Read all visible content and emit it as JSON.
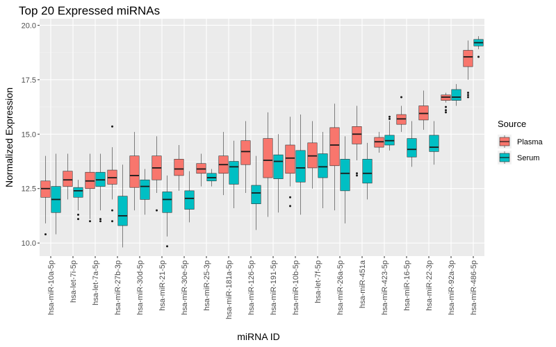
{
  "chart_data": {
    "type": "boxplot",
    "title": "Top 20 Expressed miRNAs",
    "xlabel": "miRNA ID",
    "ylabel": "Normalized Expression",
    "ylim": [
      9.4,
      20.3
    ],
    "yticks": [
      "10.0",
      "12.5",
      "15.0",
      "17.5",
      "20.0"
    ],
    "grid": true,
    "legend": {
      "title": "Source",
      "placement": "right",
      "entries": [
        {
          "name": "Plasma",
          "color": "#F8766D"
        },
        {
          "name": "Serum",
          "color": "#00BFC4"
        }
      ]
    },
    "categories": [
      "hsa-miR-10a-5p",
      "hsa-let-7i-5p",
      "hsa-let-7a-5p",
      "hsa-miR-27b-3p",
      "hsa-miR-30d-5p",
      "hsa-miR-21-5p",
      "hsa-miR-30e-5p",
      "hsa-miR-25-3p",
      "hsa-miR-181a-5p",
      "hsa-miR-126-5p",
      "hsa-miR-191-5p",
      "hsa-miR-10b-5p",
      "hsa-let-7f-5p",
      "hsa-miR-26a-5p",
      "hsa-miR-451a",
      "hsa-miR-423-5p",
      "hsa-miR-16-5p",
      "hsa-miR-22-3p",
      "hsa-miR-92a-3p",
      "hsa-miR-486-5p"
    ],
    "series": [
      {
        "name": "Plasma",
        "color": "#F8766D",
        "boxes": [
          {
            "min": 10.9,
            "q1": 12.1,
            "median": 12.5,
            "q3": 12.85,
            "max": 14.0,
            "outliers": [
              10.4
            ]
          },
          {
            "min": 12.0,
            "q1": 12.6,
            "median": 12.9,
            "q3": 13.3,
            "max": 14.1,
            "outliers": []
          },
          {
            "min": 11.1,
            "q1": 12.5,
            "median": 12.85,
            "q3": 13.25,
            "max": 14.1,
            "outliers": [
              11.0
            ]
          },
          {
            "min": 12.0,
            "q1": 12.7,
            "median": 13.0,
            "q3": 13.35,
            "max": 14.4,
            "outliers": [
              15.35,
              11.5,
              11.0
            ]
          },
          {
            "min": 11.5,
            "q1": 12.55,
            "median": 13.1,
            "q3": 14.0,
            "max": 15.1,
            "outliers": []
          },
          {
            "min": 12.3,
            "q1": 12.9,
            "median": 13.45,
            "q3": 14.0,
            "max": 14.9,
            "outliers": [
              11.5
            ]
          },
          {
            "min": 12.4,
            "q1": 13.1,
            "median": 13.4,
            "q3": 13.85,
            "max": 14.5,
            "outliers": []
          },
          {
            "min": 12.6,
            "q1": 13.2,
            "median": 13.4,
            "q3": 13.65,
            "max": 14.1,
            "outliers": []
          },
          {
            "min": 12.2,
            "q1": 13.2,
            "median": 13.6,
            "q3": 14.0,
            "max": 15.1,
            "outliers": []
          },
          {
            "min": 12.3,
            "q1": 13.6,
            "median": 14.2,
            "q3": 14.7,
            "max": 15.6,
            "outliers": []
          },
          {
            "min": 11.2,
            "q1": 13.0,
            "median": 13.8,
            "q3": 14.8,
            "max": 16.0,
            "outliers": []
          },
          {
            "min": 12.6,
            "q1": 13.2,
            "median": 13.9,
            "q3": 14.5,
            "max": 15.8,
            "outliers": [
              12.1,
              11.7
            ]
          },
          {
            "min": 12.5,
            "q1": 13.45,
            "median": 14.0,
            "q3": 14.6,
            "max": 15.6,
            "outliers": []
          },
          {
            "min": 11.5,
            "q1": 13.55,
            "median": 14.5,
            "q3": 15.3,
            "max": 16.4,
            "outliers": []
          },
          {
            "min": 13.8,
            "q1": 14.55,
            "median": 15.0,
            "q3": 15.35,
            "max": 16.3,
            "outliers": [
              13.2,
              13.1
            ]
          },
          {
            "min": 14.15,
            "q1": 14.4,
            "median": 14.65,
            "q3": 14.85,
            "max": 15.1,
            "outliers": []
          },
          {
            "min": 15.1,
            "q1": 15.45,
            "median": 15.7,
            "q3": 15.9,
            "max": 16.3,
            "outliers": [
              16.7
            ]
          },
          {
            "min": 15.2,
            "q1": 15.65,
            "median": 15.95,
            "q3": 16.3,
            "max": 17.0,
            "outliers": []
          },
          {
            "min": 16.45,
            "q1": 16.55,
            "median": 16.7,
            "q3": 16.8,
            "max": 16.9,
            "outliers": [
              16.25,
              16.1,
              16.0
            ]
          },
          {
            "min": 17.5,
            "q1": 18.1,
            "median": 18.55,
            "q3": 18.85,
            "max": 19.3,
            "outliers": [
              16.9,
              16.8,
              16.7
            ]
          }
        ]
      },
      {
        "name": "Serum",
        "color": "#00BFC4",
        "boxes": [
          {
            "min": 10.4,
            "q1": 11.4,
            "median": 12.0,
            "q3": 12.6,
            "max": 14.1,
            "outliers": []
          },
          {
            "min": 11.5,
            "q1": 12.1,
            "median": 12.4,
            "q3": 12.55,
            "max": 12.9,
            "outliers": [
              11.3,
              11.1
            ]
          },
          {
            "min": 11.5,
            "q1": 12.6,
            "median": 12.9,
            "q3": 13.25,
            "max": 14.1,
            "outliers": [
              11.1,
              11.0
            ]
          },
          {
            "min": 9.8,
            "q1": 10.8,
            "median": 11.25,
            "q3": 12.15,
            "max": 13.6,
            "outliers": []
          },
          {
            "min": 11.3,
            "q1": 12.0,
            "median": 12.6,
            "q3": 12.9,
            "max": 13.4,
            "outliers": []
          },
          {
            "min": 10.3,
            "q1": 11.4,
            "median": 12.0,
            "q3": 12.35,
            "max": 13.1,
            "outliers": [
              9.85
            ]
          },
          {
            "min": 10.95,
            "q1": 11.55,
            "median": 12.05,
            "q3": 12.4,
            "max": 13.3,
            "outliers": []
          },
          {
            "min": 12.6,
            "q1": 12.85,
            "median": 13.0,
            "q3": 13.2,
            "max": 13.4,
            "outliers": []
          },
          {
            "min": 11.6,
            "q1": 12.7,
            "median": 13.5,
            "q3": 13.75,
            "max": 14.7,
            "outliers": []
          },
          {
            "min": 10.6,
            "q1": 11.8,
            "median": 12.3,
            "q3": 12.65,
            "max": 14.0,
            "outliers": []
          },
          {
            "min": 11.4,
            "q1": 12.95,
            "median": 13.75,
            "q3": 14.05,
            "max": 15.0,
            "outliers": []
          },
          {
            "min": 11.3,
            "q1": 12.8,
            "median": 13.45,
            "q3": 14.25,
            "max": 15.9,
            "outliers": []
          },
          {
            "min": 11.6,
            "q1": 13.0,
            "median": 13.5,
            "q3": 14.1,
            "max": 15.1,
            "outliers": []
          },
          {
            "min": 10.9,
            "q1": 12.4,
            "median": 13.2,
            "q3": 13.85,
            "max": 14.9,
            "outliers": []
          },
          {
            "min": 12.0,
            "q1": 12.75,
            "median": 13.2,
            "q3": 13.85,
            "max": 14.6,
            "outliers": []
          },
          {
            "min": 14.25,
            "q1": 14.5,
            "median": 14.7,
            "q3": 14.95,
            "max": 15.6,
            "outliers": [
              15.8,
              15.7
            ]
          },
          {
            "min": 13.5,
            "q1": 13.95,
            "median": 14.3,
            "q3": 14.8,
            "max": 15.6,
            "outliers": []
          },
          {
            "min": 13.6,
            "q1": 14.2,
            "median": 14.4,
            "q3": 14.95,
            "max": 15.6,
            "outliers": []
          },
          {
            "min": 16.3,
            "q1": 16.55,
            "median": 16.7,
            "q3": 17.05,
            "max": 17.3,
            "outliers": []
          },
          {
            "min": 18.9,
            "q1": 19.05,
            "median": 19.2,
            "q3": 19.35,
            "max": 19.5,
            "outliers": [
              18.55
            ]
          }
        ]
      }
    ]
  }
}
